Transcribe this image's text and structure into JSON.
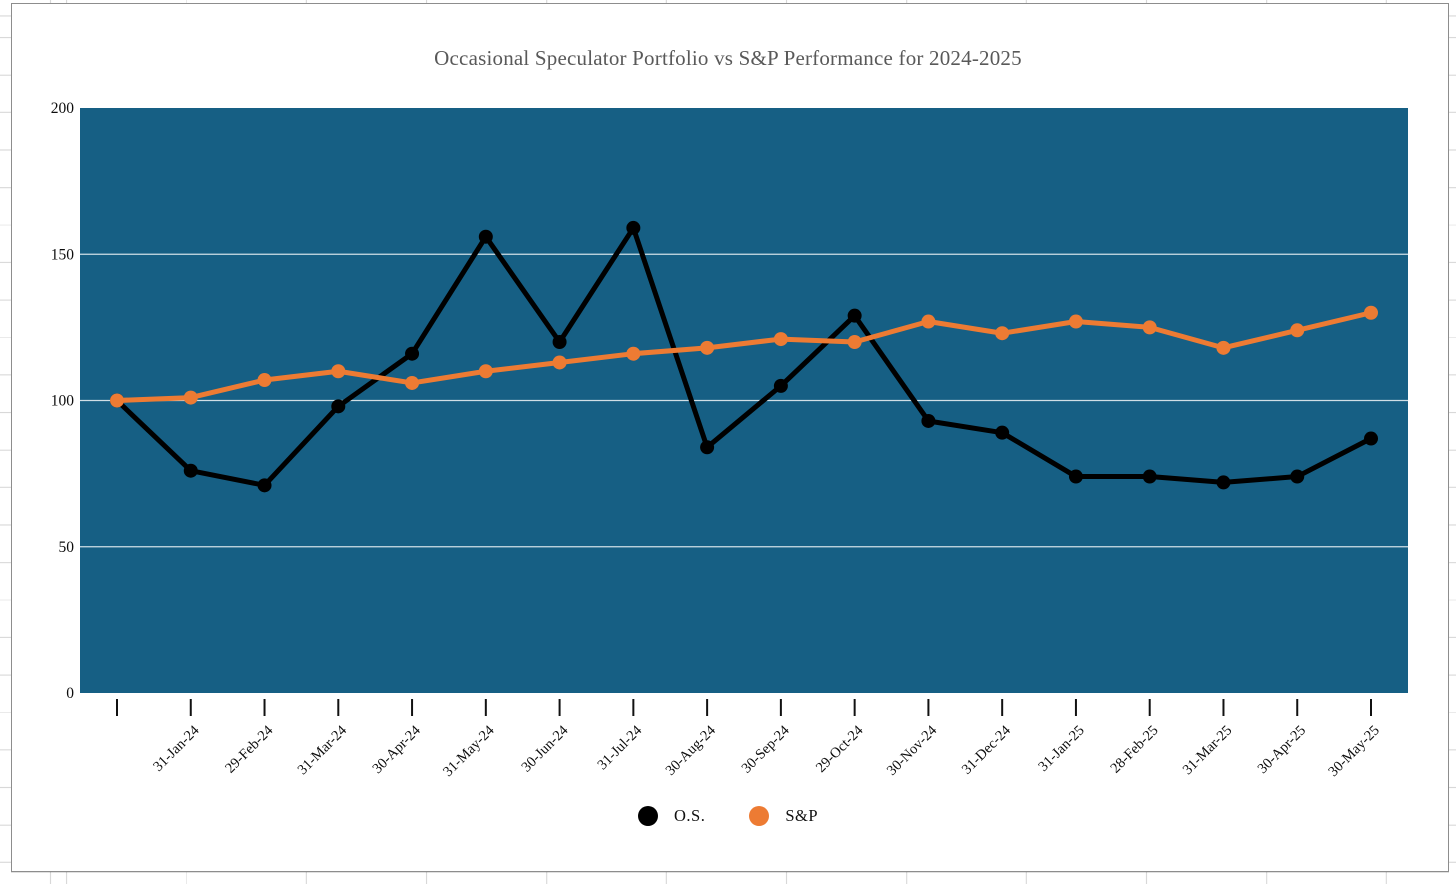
{
  "chart_data": {
    "type": "line",
    "title": "Occasional Speculator Portfolio vs S&P Performance for 2024-2025",
    "x_labels": [
      "",
      "31-Jan-24",
      "29-Feb-24",
      "31-Mar-24",
      "30-Apr-24",
      "31-May-24",
      "30-Jun-24",
      "31-Jul-24",
      "30-Aug-24",
      "30-Sep-24",
      "29-Oct-24",
      "30-Nov-24",
      "31-Dec-24",
      "31-Jan-25",
      "28-Feb-25",
      "31-Mar-25",
      "30-Apr-25",
      "30-May-25"
    ],
    "ylim": [
      0,
      200
    ],
    "yticks": [
      0,
      50,
      100,
      150,
      200
    ],
    "grid_values": [
      50,
      100,
      150
    ],
    "grid_on": true,
    "legend_position": "bottom",
    "plot_bg": "#165f84",
    "gridline_color": "rgba(255,255,255,0.8)",
    "tick_color": "#111111",
    "series": [
      {
        "name": "O.S.",
        "color": "#000000",
        "values": [
          100,
          76,
          71,
          98,
          116,
          156,
          120,
          159,
          84,
          105,
          129,
          93,
          89,
          74,
          74,
          72,
          74,
          87
        ]
      },
      {
        "name": "S&P",
        "color": "#ED7B33",
        "values": [
          100,
          101,
          107,
          110,
          106,
          110,
          113,
          116,
          118,
          121,
          120,
          127,
          123,
          127,
          125,
          118,
          124,
          130
        ]
      }
    ]
  }
}
